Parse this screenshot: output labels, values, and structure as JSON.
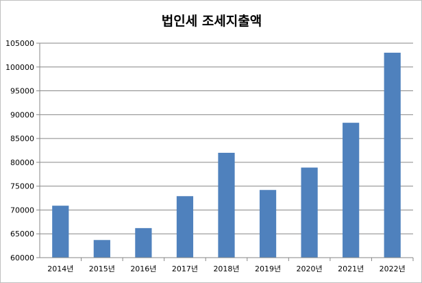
{
  "chart_data": {
    "type": "bar",
    "title": "법인세 조세지출액",
    "xlabel": "",
    "ylabel": "",
    "categories": [
      "2014년",
      "2015년",
      "2016년",
      "2017년",
      "2018년",
      "2019년",
      "2020년",
      "2021년",
      "2022년"
    ],
    "values": [
      70900,
      63700,
      66200,
      72900,
      82000,
      74200,
      78900,
      88300,
      103000
    ],
    "ylim": [
      60000,
      105000
    ],
    "yticks": [
      60000,
      65000,
      70000,
      75000,
      80000,
      85000,
      90000,
      95000,
      100000,
      105000
    ],
    "ytick_labels": [
      "60000",
      "65000",
      "70000",
      "75000",
      "80000",
      "85000",
      "90000",
      "95000",
      "100000",
      "105000"
    ],
    "grid": true,
    "legend": "none",
    "bar_color": "#4f81bd",
    "grid_color": "#868686"
  }
}
